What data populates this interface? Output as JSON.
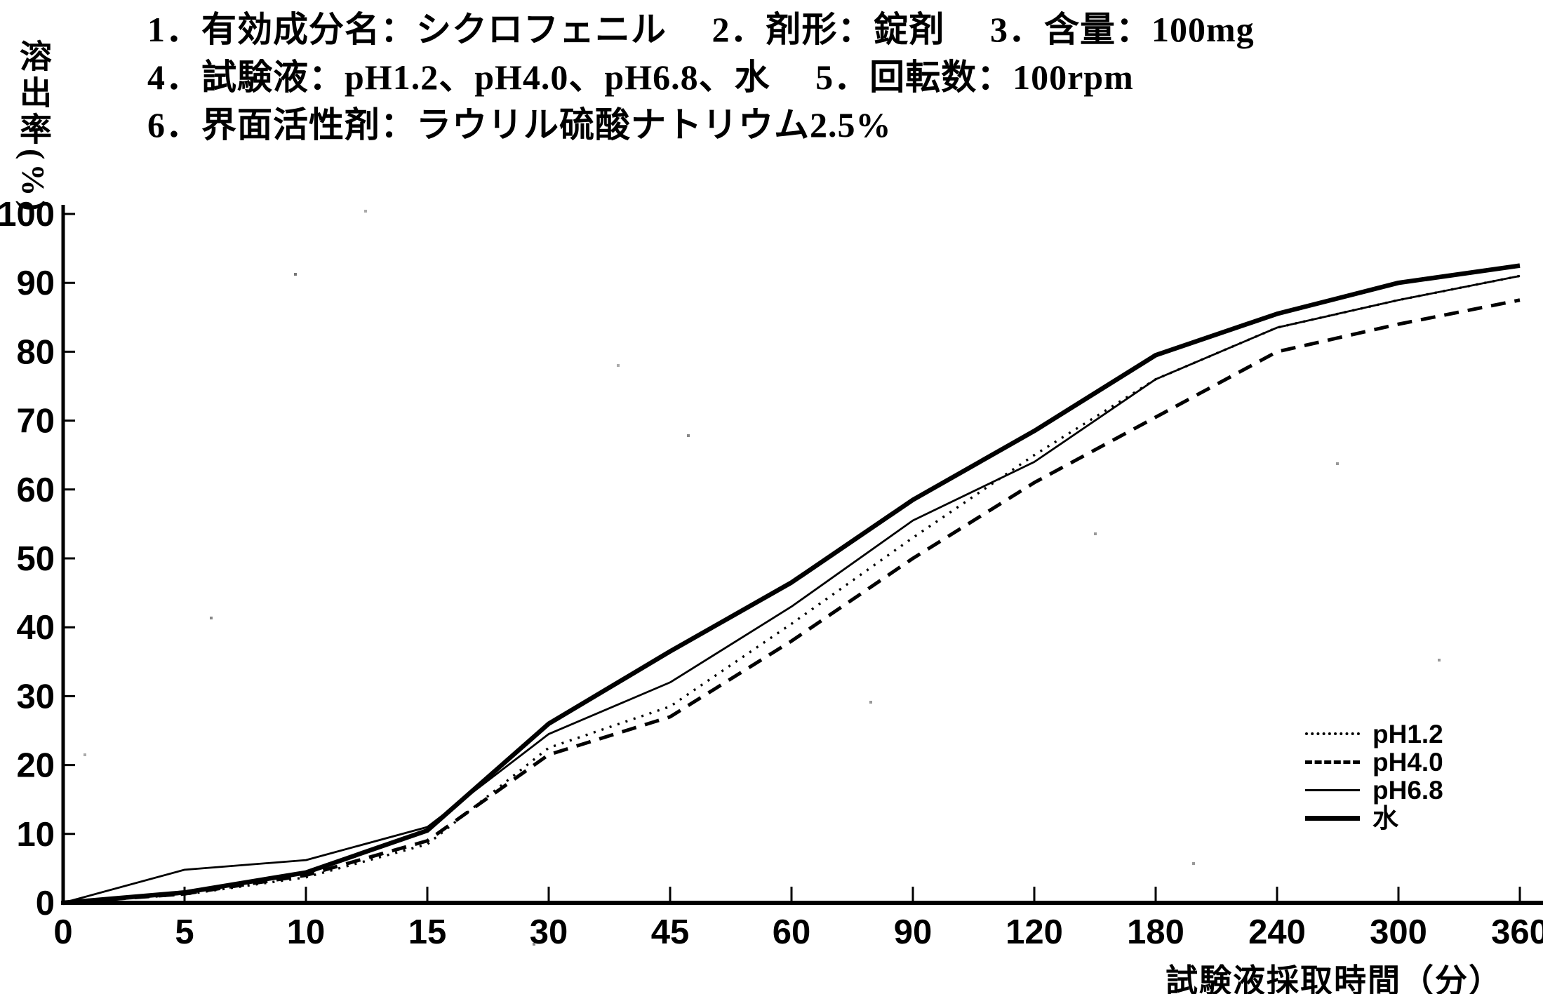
{
  "header": {
    "line1": "1．有効成分名：シクロフェニル　 2．剤形：錠剤　 3．含量：100mg",
    "line2": "4．試験液：pH1.2、pH4.0、pH6.8、水　 5．回転数：100rpm",
    "line3": "6．界面活性剤：ラウリル硫酸ナトリウム2.5%"
  },
  "chart_data": {
    "type": "line",
    "title": "",
    "xlabel": "試験液採取時間（分）",
    "ylabel": "溶出率(%)",
    "x_ticks": [
      0,
      5,
      10,
      15,
      30,
      45,
      60,
      90,
      120,
      180,
      240,
      300,
      360
    ],
    "x_tick_spacing": "equal-categorical",
    "y_ticks": [
      0,
      10,
      20,
      30,
      40,
      50,
      60,
      70,
      80,
      90,
      100
    ],
    "ylim": [
      0,
      100
    ],
    "grid": false,
    "legend_position": "inside-lower-right",
    "series": [
      {
        "name": "pH1.2",
        "line_style": "dotted",
        "line_weight": "thin",
        "values": [
          0,
          1.2,
          3.7,
          8.5,
          22.5,
          28.5,
          40.5,
          53,
          65,
          76,
          83.5,
          87.5,
          91
        ]
      },
      {
        "name": "pH4.0",
        "line_style": "dashed",
        "line_weight": "medium",
        "values": [
          0,
          1.3,
          4.0,
          9,
          21.5,
          27,
          38,
          50,
          61,
          70.5,
          80,
          84,
          87.5
        ]
      },
      {
        "name": "pH6.8",
        "line_style": "solid",
        "line_weight": "thin",
        "values": [
          0,
          4.8,
          6.2,
          11,
          24.5,
          32,
          43,
          55.5,
          64,
          76,
          83.5,
          87.5,
          91
        ]
      },
      {
        "name": "水",
        "line_style": "solid",
        "line_weight": "thick",
        "values": [
          0,
          1.5,
          4.4,
          10.5,
          26,
          36.5,
          46.5,
          58.5,
          68.5,
          79.5,
          85.5,
          90,
          92.5
        ]
      }
    ]
  }
}
